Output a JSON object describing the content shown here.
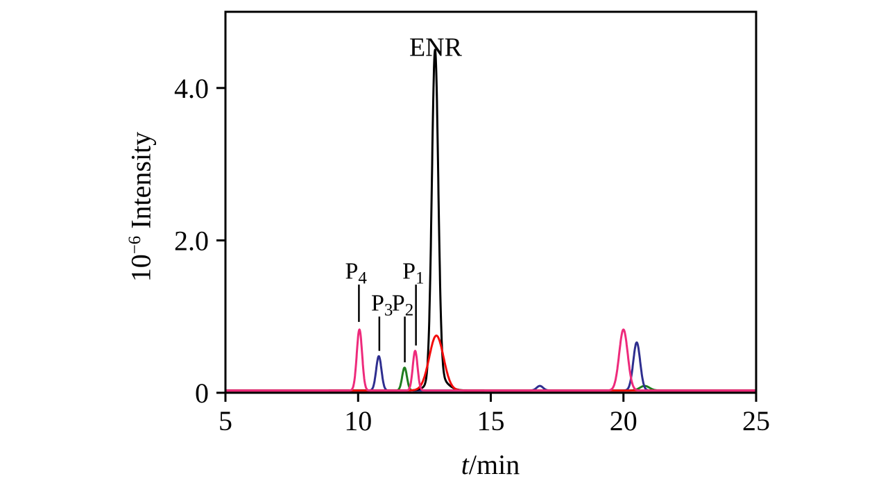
{
  "figure": {
    "background_color": "#ffffff",
    "axis_color": "#000000"
  },
  "chart_data": {
    "type": "line",
    "title": "",
    "xlabel": "t/min",
    "xlabel_parts": {
      "italic": "t",
      "rest": "/min"
    },
    "ylabel": "10−6 Intensity",
    "ylabel_parts": {
      "base": "10",
      "sup": "−6",
      "rest": " Intensity"
    },
    "xlim": [
      5,
      25
    ],
    "ylim": [
      0,
      5.0
    ],
    "xticks": [
      5,
      10,
      15,
      20,
      25
    ],
    "xtick_labels": [
      "5",
      "10",
      "15",
      "20",
      "25"
    ],
    "yticks": [
      0,
      2.0,
      4.0
    ],
    "ytick_labels": [
      "0",
      "2.0",
      "4.0"
    ],
    "grid": false,
    "legend": null,
    "baseline": 0.03,
    "series": [
      {
        "name": "green-trace",
        "color": "#1f7d1f",
        "range": [
          5,
          25
        ],
        "peaks": [
          {
            "t": 11.75,
            "h": 0.3,
            "w": 0.09
          },
          {
            "t": 20.8,
            "h": 0.06,
            "w": 0.18
          }
        ]
      },
      {
        "name": "blue-trace",
        "color": "#2e2e8f",
        "range": [
          5,
          25
        ],
        "peaks": [
          {
            "t": 10.78,
            "h": 0.45,
            "w": 0.1
          },
          {
            "t": 16.85,
            "h": 0.06,
            "w": 0.12
          },
          {
            "t": 20.5,
            "h": 0.63,
            "w": 0.13
          }
        ]
      },
      {
        "name": "ENR-trace",
        "color": "#000000",
        "range": [
          8.9,
          14.75
        ],
        "peaks": [
          {
            "t": 12.9,
            "h": 4.3,
            "w": 0.12
          },
          {
            "t": 13.0,
            "h": 0.18,
            "w": 0.32
          }
        ]
      },
      {
        "name": "red-trace",
        "color": "#f20c0c",
        "range": [
          5,
          25
        ],
        "peaks": [
          {
            "t": 12.95,
            "h": 0.72,
            "w": 0.27
          }
        ]
      },
      {
        "name": "pink-trace",
        "color": "#ee2a7b",
        "range": [
          5,
          25
        ],
        "peaks": [
          {
            "t": 10.05,
            "h": 0.8,
            "w": 0.1
          },
          {
            "t": 12.15,
            "h": 0.52,
            "w": 0.09
          },
          {
            "t": 20.0,
            "h": 0.8,
            "w": 0.16
          }
        ]
      }
    ],
    "annotations": [
      {
        "text": "ENR",
        "sub": "",
        "x": 12.92,
        "y": 4.42,
        "font": 38
      },
      {
        "text": "P",
        "sub": "4",
        "x": 9.92,
        "y": 1.5,
        "font": 34,
        "line": {
          "x": 10.03,
          "y1": 1.42,
          "y2": 0.93
        }
      },
      {
        "text": "P",
        "sub": "3",
        "x": 10.9,
        "y": 1.08,
        "font": 34,
        "line": {
          "x": 10.8,
          "y1": 1.0,
          "y2": 0.55
        }
      },
      {
        "text": "P",
        "sub": "2",
        "x": 11.68,
        "y": 1.08,
        "font": 34,
        "line": {
          "x": 11.76,
          "y1": 1.0,
          "y2": 0.4
        }
      },
      {
        "text": "P",
        "sub": "1",
        "x": 12.08,
        "y": 1.5,
        "font": 34,
        "line": {
          "x": 12.18,
          "y1": 1.42,
          "y2": 0.62
        }
      }
    ]
  }
}
